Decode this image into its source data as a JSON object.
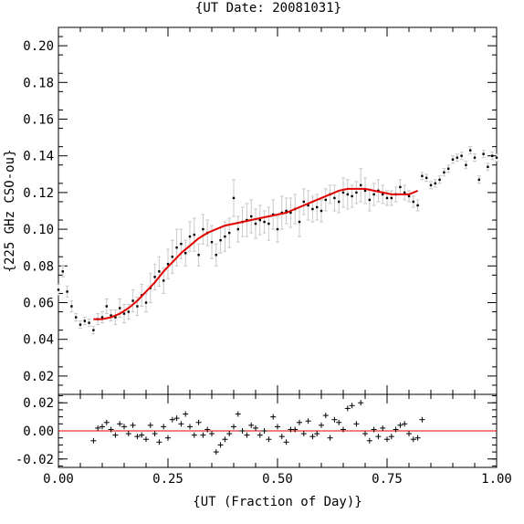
{
  "chart_data": {
    "type": "scatter",
    "title": "{UT Date: 20081031}",
    "xlabel": "{UT (Fraction of Day)}",
    "ylabel": "{225 GHz CSO-ou}",
    "xlim": [
      0.0,
      1.0
    ],
    "xticks": [
      "0.00",
      "0.25",
      "0.50",
      "0.75",
      "1.00"
    ],
    "main": {
      "ylim": [
        0.01,
        0.21
      ],
      "yticks": [
        "0.02",
        "0.04",
        "0.06",
        "0.08",
        "0.10",
        "0.12",
        "0.14",
        "0.16",
        "0.18",
        "0.20"
      ],
      "series": [
        {
          "kind": "measurements",
          "x": [
            0.0,
            0.01,
            0.02,
            0.03,
            0.04,
            0.05,
            0.06,
            0.07,
            0.08,
            0.09,
            0.1,
            0.11,
            0.12,
            0.13,
            0.14,
            0.15,
            0.16,
            0.17,
            0.18,
            0.19,
            0.2,
            0.21,
            0.22,
            0.23,
            0.24,
            0.25,
            0.26,
            0.27,
            0.28,
            0.29,
            0.3,
            0.31,
            0.32,
            0.33,
            0.34,
            0.35,
            0.36,
            0.37,
            0.38,
            0.39,
            0.4,
            0.41,
            0.42,
            0.43,
            0.44,
            0.45,
            0.46,
            0.47,
            0.48,
            0.49,
            0.5,
            0.51,
            0.52,
            0.53,
            0.54,
            0.55,
            0.56,
            0.57,
            0.58,
            0.59,
            0.6,
            0.61,
            0.62,
            0.63,
            0.64,
            0.65,
            0.66,
            0.67,
            0.68,
            0.69,
            0.7,
            0.71,
            0.72,
            0.73,
            0.74,
            0.75,
            0.76,
            0.77,
            0.78,
            0.79,
            0.8,
            0.81,
            0.82,
            0.83,
            0.84,
            0.85,
            0.86,
            0.87,
            0.88,
            0.89,
            0.9,
            0.91,
            0.92,
            0.93,
            0.94,
            0.95,
            0.96,
            0.97,
            0.98,
            0.99,
            1.0
          ],
          "y": [
            0.067,
            0.077,
            0.066,
            0.058,
            0.052,
            0.048,
            0.05,
            0.049,
            0.045,
            0.051,
            0.052,
            0.058,
            0.053,
            0.052,
            0.057,
            0.054,
            0.055,
            0.061,
            0.058,
            0.064,
            0.06,
            0.068,
            0.074,
            0.077,
            0.072,
            0.081,
            0.085,
            0.09,
            0.092,
            0.087,
            0.096,
            0.097,
            0.086,
            0.1,
            0.098,
            0.093,
            0.086,
            0.094,
            0.096,
            0.098,
            0.117,
            0.1,
            0.104,
            0.105,
            0.107,
            0.103,
            0.105,
            0.104,
            0.103,
            0.108,
            0.1,
            0.109,
            0.11,
            0.109,
            0.111,
            0.104,
            0.115,
            0.113,
            0.111,
            0.112,
            0.11,
            0.116,
            0.119,
            0.117,
            0.115,
            0.12,
            0.119,
            0.118,
            0.12,
            0.124,
            0.121,
            0.116,
            0.119,
            0.121,
            0.119,
            0.117,
            0.117,
            0.119,
            0.123,
            0.12,
            0.118,
            0.115,
            0.113,
            0.129,
            0.128,
            0.124,
            0.125,
            0.127,
            0.131,
            0.133,
            0.138,
            0.139,
            0.14,
            0.135,
            0.143,
            0.139,
            0.127,
            0.141,
            0.134,
            0.14,
            0.139
          ],
          "err": [
            0.003,
            0.003,
            0.003,
            0.003,
            0.002,
            0.002,
            0.002,
            0.002,
            0.002,
            0.003,
            0.003,
            0.004,
            0.003,
            0.004,
            0.005,
            0.005,
            0.004,
            0.006,
            0.005,
            0.006,
            0.005,
            0.008,
            0.007,
            0.008,
            0.007,
            0.008,
            0.009,
            0.01,
            0.008,
            0.007,
            0.008,
            0.009,
            0.006,
            0.008,
            0.007,
            0.009,
            0.006,
            0.007,
            0.008,
            0.008,
            0.01,
            0.007,
            0.008,
            0.009,
            0.009,
            0.008,
            0.008,
            0.006,
            0.009,
            0.008,
            0.007,
            0.009,
            0.007,
            0.008,
            0.008,
            0.008,
            0.007,
            0.008,
            0.007,
            0.007,
            0.006,
            0.006,
            0.005,
            0.007,
            0.006,
            0.008,
            0.008,
            0.006,
            0.006,
            0.009,
            0.007,
            0.006,
            0.006,
            0.006,
            0.005,
            0.004,
            0.004,
            0.004,
            0.004,
            0.004,
            0.003,
            0.003,
            0.003,
            0.002,
            0.002,
            0.002,
            0.002,
            0.002,
            0.002,
            0.002,
            0.002,
            0.002,
            0.002,
            0.002,
            0.002,
            0.002,
            0.002,
            0.002,
            0.002,
            0.002,
            0.002
          ]
        },
        {
          "kind": "fit",
          "x": [
            0.08,
            0.1,
            0.12,
            0.14,
            0.16,
            0.18,
            0.2,
            0.22,
            0.24,
            0.26,
            0.28,
            0.3,
            0.32,
            0.34,
            0.36,
            0.38,
            0.4,
            0.42,
            0.44,
            0.46,
            0.48,
            0.5,
            0.52,
            0.54,
            0.56,
            0.58,
            0.6,
            0.62,
            0.64,
            0.66,
            0.68,
            0.7,
            0.72,
            0.74,
            0.76,
            0.78,
            0.8,
            0.82
          ],
          "y": [
            0.051,
            0.051,
            0.052,
            0.054,
            0.057,
            0.061,
            0.066,
            0.071,
            0.077,
            0.082,
            0.087,
            0.091,
            0.095,
            0.098,
            0.1,
            0.102,
            0.103,
            0.104,
            0.105,
            0.106,
            0.107,
            0.108,
            0.109,
            0.111,
            0.113,
            0.115,
            0.117,
            0.119,
            0.121,
            0.122,
            0.122,
            0.122,
            0.121,
            0.12,
            0.119,
            0.119,
            0.119,
            0.121
          ]
        }
      ]
    },
    "residuals": {
      "ylim": [
        -0.026,
        0.026
      ],
      "yticks": [
        "0.02",
        "0.00",
        "-0.02"
      ],
      "x": [
        0.08,
        0.09,
        0.1,
        0.11,
        0.12,
        0.13,
        0.14,
        0.15,
        0.16,
        0.17,
        0.18,
        0.19,
        0.2,
        0.21,
        0.22,
        0.23,
        0.24,
        0.25,
        0.26,
        0.27,
        0.28,
        0.29,
        0.3,
        0.31,
        0.32,
        0.33,
        0.34,
        0.35,
        0.36,
        0.37,
        0.38,
        0.39,
        0.4,
        0.41,
        0.42,
        0.43,
        0.44,
        0.45,
        0.46,
        0.47,
        0.48,
        0.49,
        0.5,
        0.51,
        0.52,
        0.53,
        0.54,
        0.55,
        0.56,
        0.57,
        0.58,
        0.59,
        0.6,
        0.61,
        0.62,
        0.63,
        0.64,
        0.65,
        0.66,
        0.67,
        0.68,
        0.69,
        0.7,
        0.71,
        0.72,
        0.73,
        0.74,
        0.75,
        0.76,
        0.77,
        0.78,
        0.79,
        0.8,
        0.81,
        0.82,
        0.83
      ],
      "y": [
        -0.007,
        0.002,
        0.003,
        0.006,
        0.001,
        -0.003,
        0.005,
        0.003,
        -0.002,
        0.004,
        -0.004,
        -0.003,
        -0.006,
        0.004,
        -0.002,
        -0.008,
        0.003,
        -0.005,
        0.008,
        0.009,
        0.005,
        0.012,
        0.003,
        -0.003,
        0.006,
        -0.003,
        0.001,
        -0.002,
        -0.015,
        -0.01,
        -0.006,
        -0.002,
        0.003,
        0.012,
        0.0,
        -0.003,
        0.004,
        0.002,
        -0.003,
        0.0,
        -0.006,
        0.01,
        0.003,
        -0.004,
        -0.008,
        0.001,
        0.001,
        0.006,
        -0.002,
        0.007,
        -0.004,
        -0.002,
        0.004,
        0.011,
        -0.005,
        0.008,
        0.006,
        0.001,
        0.016,
        0.018,
        0.005,
        0.02,
        -0.002,
        -0.007,
        0.001,
        -0.004,
        0.002,
        -0.006,
        -0.004,
        0.001,
        0.004,
        0.005,
        -0.002,
        -0.006,
        -0.005,
        0.008
      ]
    },
    "grid": false,
    "legend": "none",
    "colors": {
      "fit": "#e00000",
      "zero_line": "#e00000",
      "error_bars": "#c8c8c8",
      "points": "#000000"
    }
  }
}
